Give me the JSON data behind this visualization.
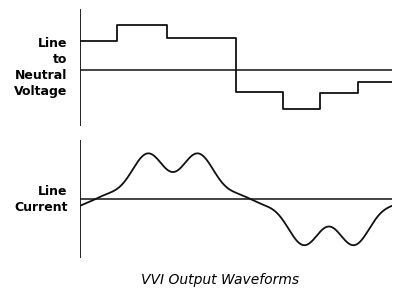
{
  "title": "VVI Output Waveforms",
  "title_fontsize": 10,
  "title_style": "italic",
  "label_top": "Line\nto\nNeutral\nVoltage",
  "label_bottom": "Line\nCurrent",
  "label_fontsize": 9,
  "line_color": "#111111",
  "vx": [
    0.0,
    0.12,
    0.12,
    0.28,
    0.28,
    0.5,
    0.5,
    0.5,
    0.65,
    0.65,
    0.77,
    0.77,
    0.89,
    0.89,
    1.01
  ],
  "vy": [
    0.55,
    0.55,
    0.85,
    0.85,
    0.6,
    0.6,
    0.0,
    -0.4,
    -0.4,
    -0.72,
    -0.72,
    -0.42,
    -0.42,
    -0.22,
    -0.22
  ],
  "figsize": [
    4.0,
    2.9
  ],
  "dpi": 100
}
